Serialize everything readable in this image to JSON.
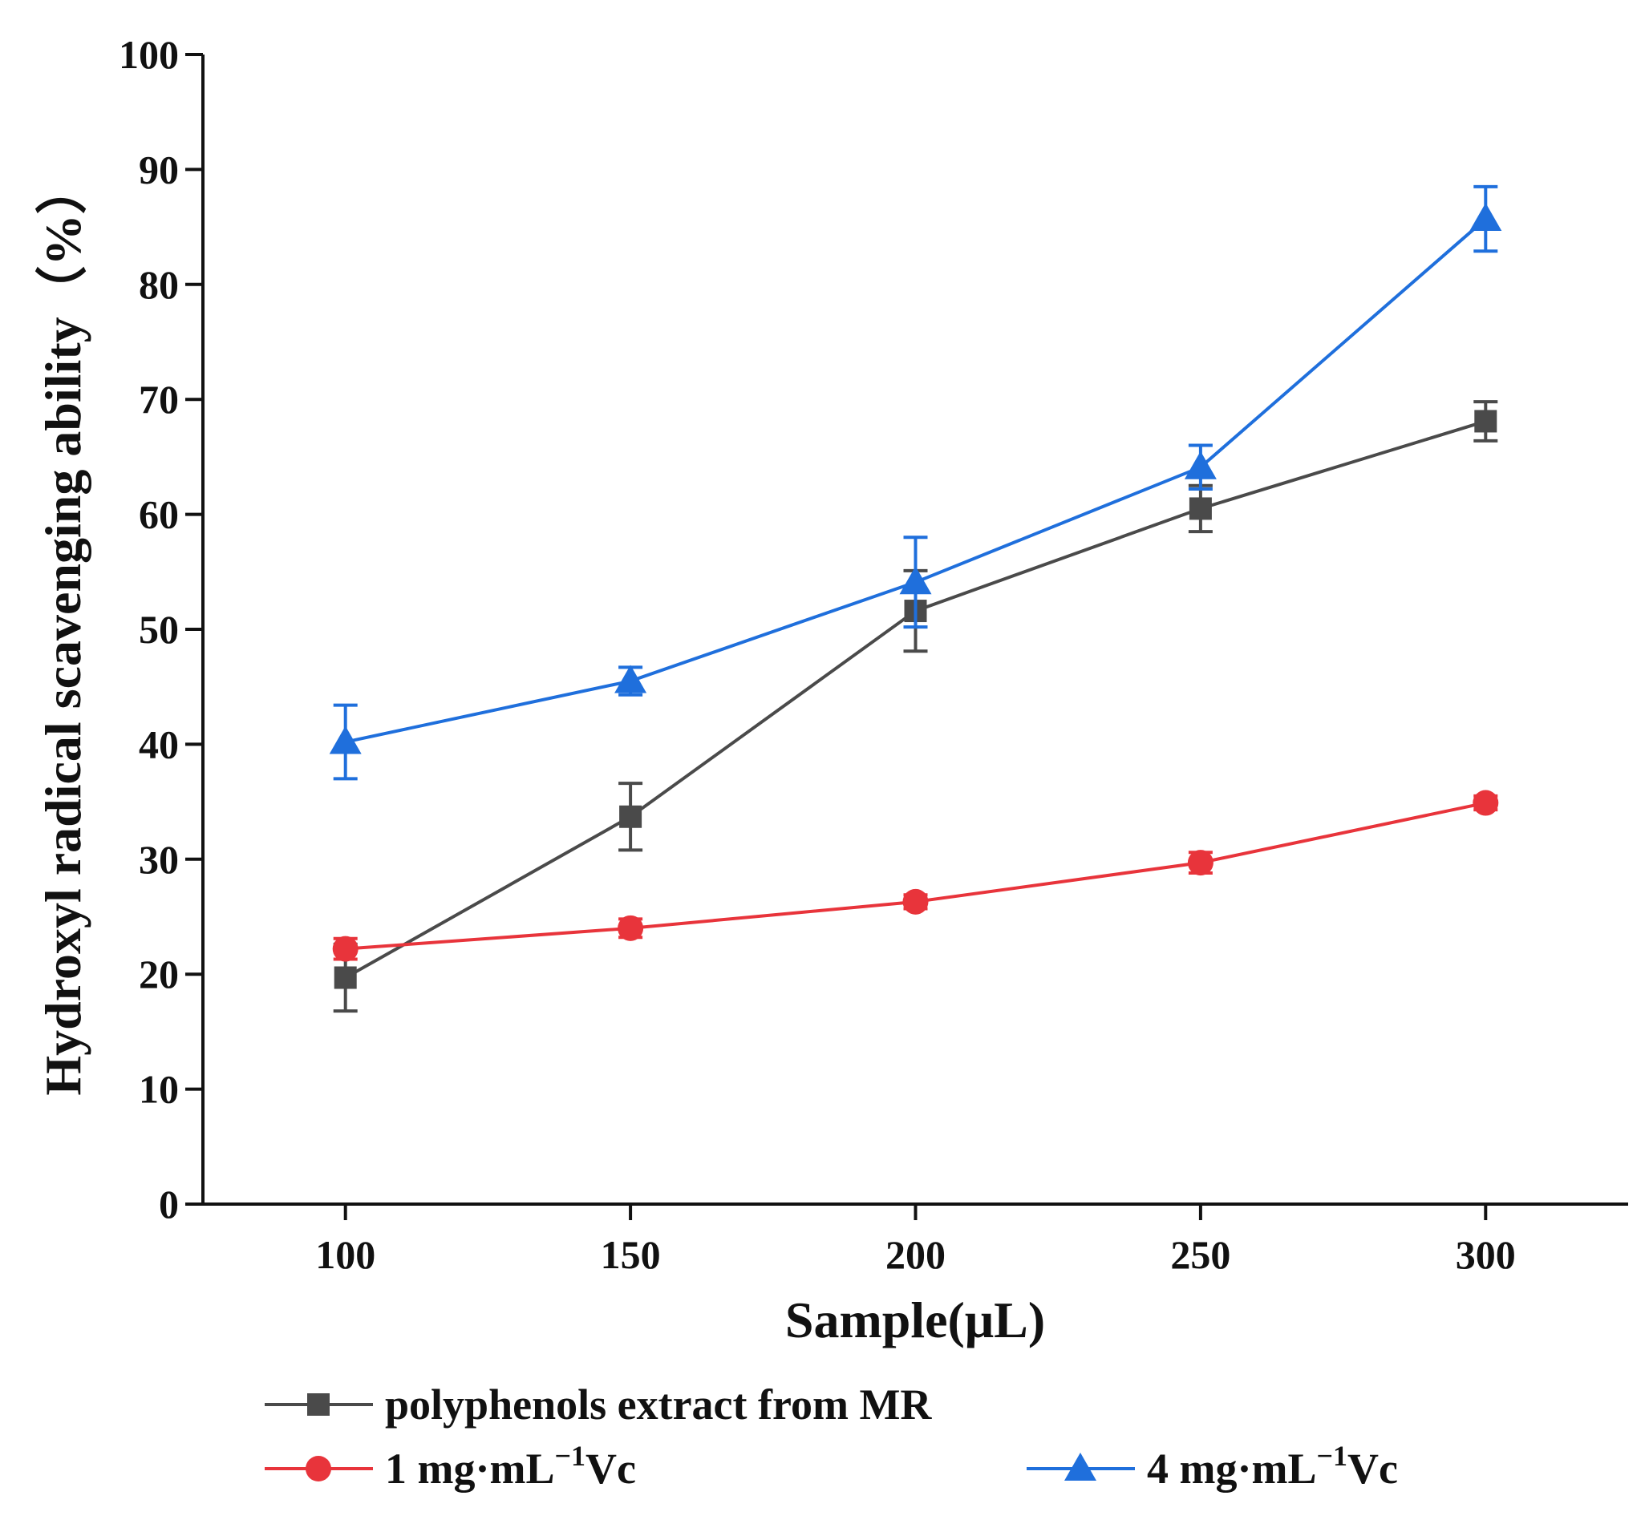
{
  "chart_data": {
    "type": "line",
    "title": "",
    "xlabel": "Sample(μL)",
    "ylabel": "Hydroxyl radical scavenging ability（%）",
    "x": [
      100,
      150,
      200,
      250,
      300
    ],
    "xlim": [
      75,
      325
    ],
    "ylim": [
      0,
      100
    ],
    "xticks": [
      "100",
      "150",
      "200",
      "250",
      "300"
    ],
    "yticks": [
      "0",
      "10",
      "20",
      "30",
      "40",
      "50",
      "60",
      "70",
      "80",
      "90",
      "100"
    ],
    "grid": false,
    "legend_position": "bottom",
    "series": [
      {
        "name": "polyphenols extract from MR",
        "label_main": "polyphenols extract from MR",
        "label_sup": "",
        "label_tail": "",
        "color": "#4a4a4a",
        "marker": "square",
        "values": [
          19.7,
          33.7,
          51.6,
          60.5,
          68.1
        ],
        "errors": [
          2.9,
          2.9,
          3.5,
          2.0,
          1.7
        ]
      },
      {
        "name": "1 mg·mL−1Vc",
        "label_main": "1 mg·mL",
        "label_sup": "−1",
        "label_tail": "Vc",
        "color": "#e8343b",
        "marker": "circle",
        "values": [
          22.2,
          24.0,
          26.3,
          29.7,
          34.9
        ],
        "errors": [
          0.9,
          0.8,
          0.6,
          0.9,
          0.6
        ]
      },
      {
        "name": "4 mg·mL−1Vc",
        "label_main": "4 mg·mL",
        "label_sup": "−1",
        "label_tail": "Vc",
        "color": "#1f6fdc",
        "marker": "triangle",
        "values": [
          40.2,
          45.5,
          54.1,
          64.1,
          85.7
        ],
        "errors": [
          3.2,
          1.2,
          3.9,
          1.9,
          2.8
        ]
      }
    ]
  }
}
